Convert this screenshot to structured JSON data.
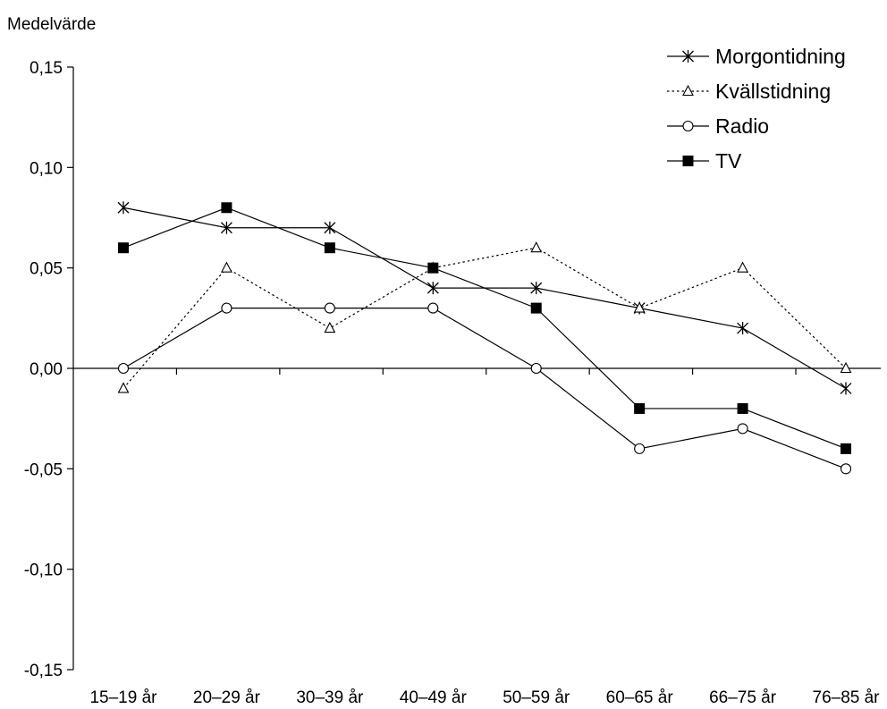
{
  "chart_data": {
    "type": "line",
    "title": "",
    "xlabel": "",
    "ylabel": "Medelvärde",
    "ylim": [
      -0.15,
      0.15
    ],
    "yticks": [
      0.15,
      0.1,
      0.05,
      0.0,
      -0.05,
      -0.1,
      -0.15
    ],
    "ytick_labels": [
      "0,15",
      "0,10",
      "0,05",
      "0,00",
      "-0,05",
      "-0,10",
      "-0,15"
    ],
    "categories": [
      "15–19 år",
      "20–29 år",
      "30–39 år",
      "40–49 år",
      "50–59 år",
      "60–65 år",
      "66–75 år",
      "76–85 år"
    ],
    "grid": false,
    "legend_position": "top-right",
    "series": [
      {
        "name": "Morgontidning",
        "marker": "asterisk",
        "line_style": "solid",
        "values": [
          0.08,
          0.07,
          0.07,
          0.04,
          0.04,
          0.03,
          0.02,
          -0.01
        ]
      },
      {
        "name": "Kvällstidning",
        "marker": "triangle-open",
        "line_style": "dotted",
        "values": [
          -0.01,
          0.05,
          0.02,
          0.05,
          0.06,
          0.03,
          0.05,
          0.0
        ]
      },
      {
        "name": "Radio",
        "marker": "circle-open",
        "line_style": "solid",
        "values": [
          0.0,
          0.03,
          0.03,
          0.03,
          0.0,
          -0.04,
          -0.03,
          -0.05
        ]
      },
      {
        "name": "TV",
        "marker": "square-filled",
        "line_style": "solid",
        "values": [
          0.06,
          0.08,
          0.06,
          0.05,
          0.03,
          -0.02,
          -0.02,
          -0.04
        ]
      }
    ],
    "colors": {
      "line": "#000000",
      "background": "#ffffff"
    }
  }
}
